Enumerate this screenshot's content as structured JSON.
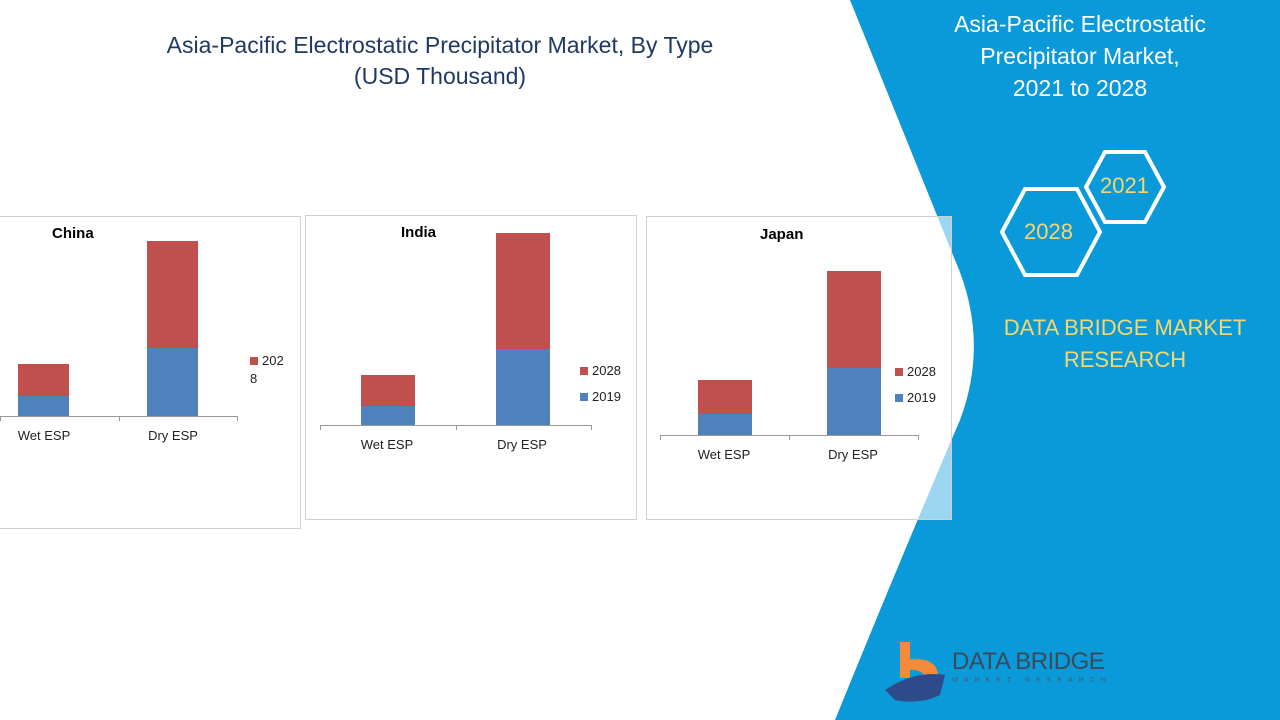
{
  "header": {
    "title_line1": "Asia-Pacific Electrostatic Precipitator Market, By Type",
    "title_line2": "(USD Thousand)"
  },
  "side": {
    "title_line1": "Asia-Pacific Electrostatic",
    "title_line2": "Precipitator Market,",
    "title_line3": "2021 to 2028",
    "hex_a": "2021",
    "hex_b": "2028",
    "brand_line1": "DATA BRIDGE MARKET",
    "brand_line2": "RESEARCH",
    "logo_line1": "DATA BRIDGE",
    "logo_line2": "MARKET RESEARCH"
  },
  "colors": {
    "series_2019": "#4f81bd",
    "series_2028": "#c0504d",
    "panel_blue": "#0b9ad9",
    "accent": "#f5d76e"
  },
  "chart_data": [
    {
      "type": "bar",
      "stacked": true,
      "title": "China",
      "categories": [
        "Wet ESP",
        "Dry ESP"
      ],
      "series": [
        {
          "name": "2019",
          "values": [
            20,
            68
          ]
        },
        {
          "name": "2028",
          "values": [
            32,
            107
          ]
        }
      ],
      "legend": [
        "202\n8"
      ],
      "ylim": [
        0,
        190
      ]
    },
    {
      "type": "bar",
      "stacked": true,
      "title": "India",
      "categories": [
        "Wet ESP",
        "Dry ESP"
      ],
      "series": [
        {
          "name": "2019",
          "values": [
            19,
            76
          ]
        },
        {
          "name": "2028",
          "values": [
            31,
            116
          ]
        }
      ],
      "legend": [
        "2028",
        "2019"
      ],
      "ylim": [
        0,
        190
      ]
    },
    {
      "type": "bar",
      "stacked": true,
      "title": "Japan",
      "categories": [
        "Wet ESP",
        "Dry ESP"
      ],
      "series": [
        {
          "name": "2019",
          "values": [
            21,
            67
          ]
        },
        {
          "name": "2028",
          "values": [
            34,
            97
          ]
        }
      ],
      "legend": [
        "2028",
        "2019"
      ],
      "ylim": [
        0,
        190
      ]
    }
  ]
}
